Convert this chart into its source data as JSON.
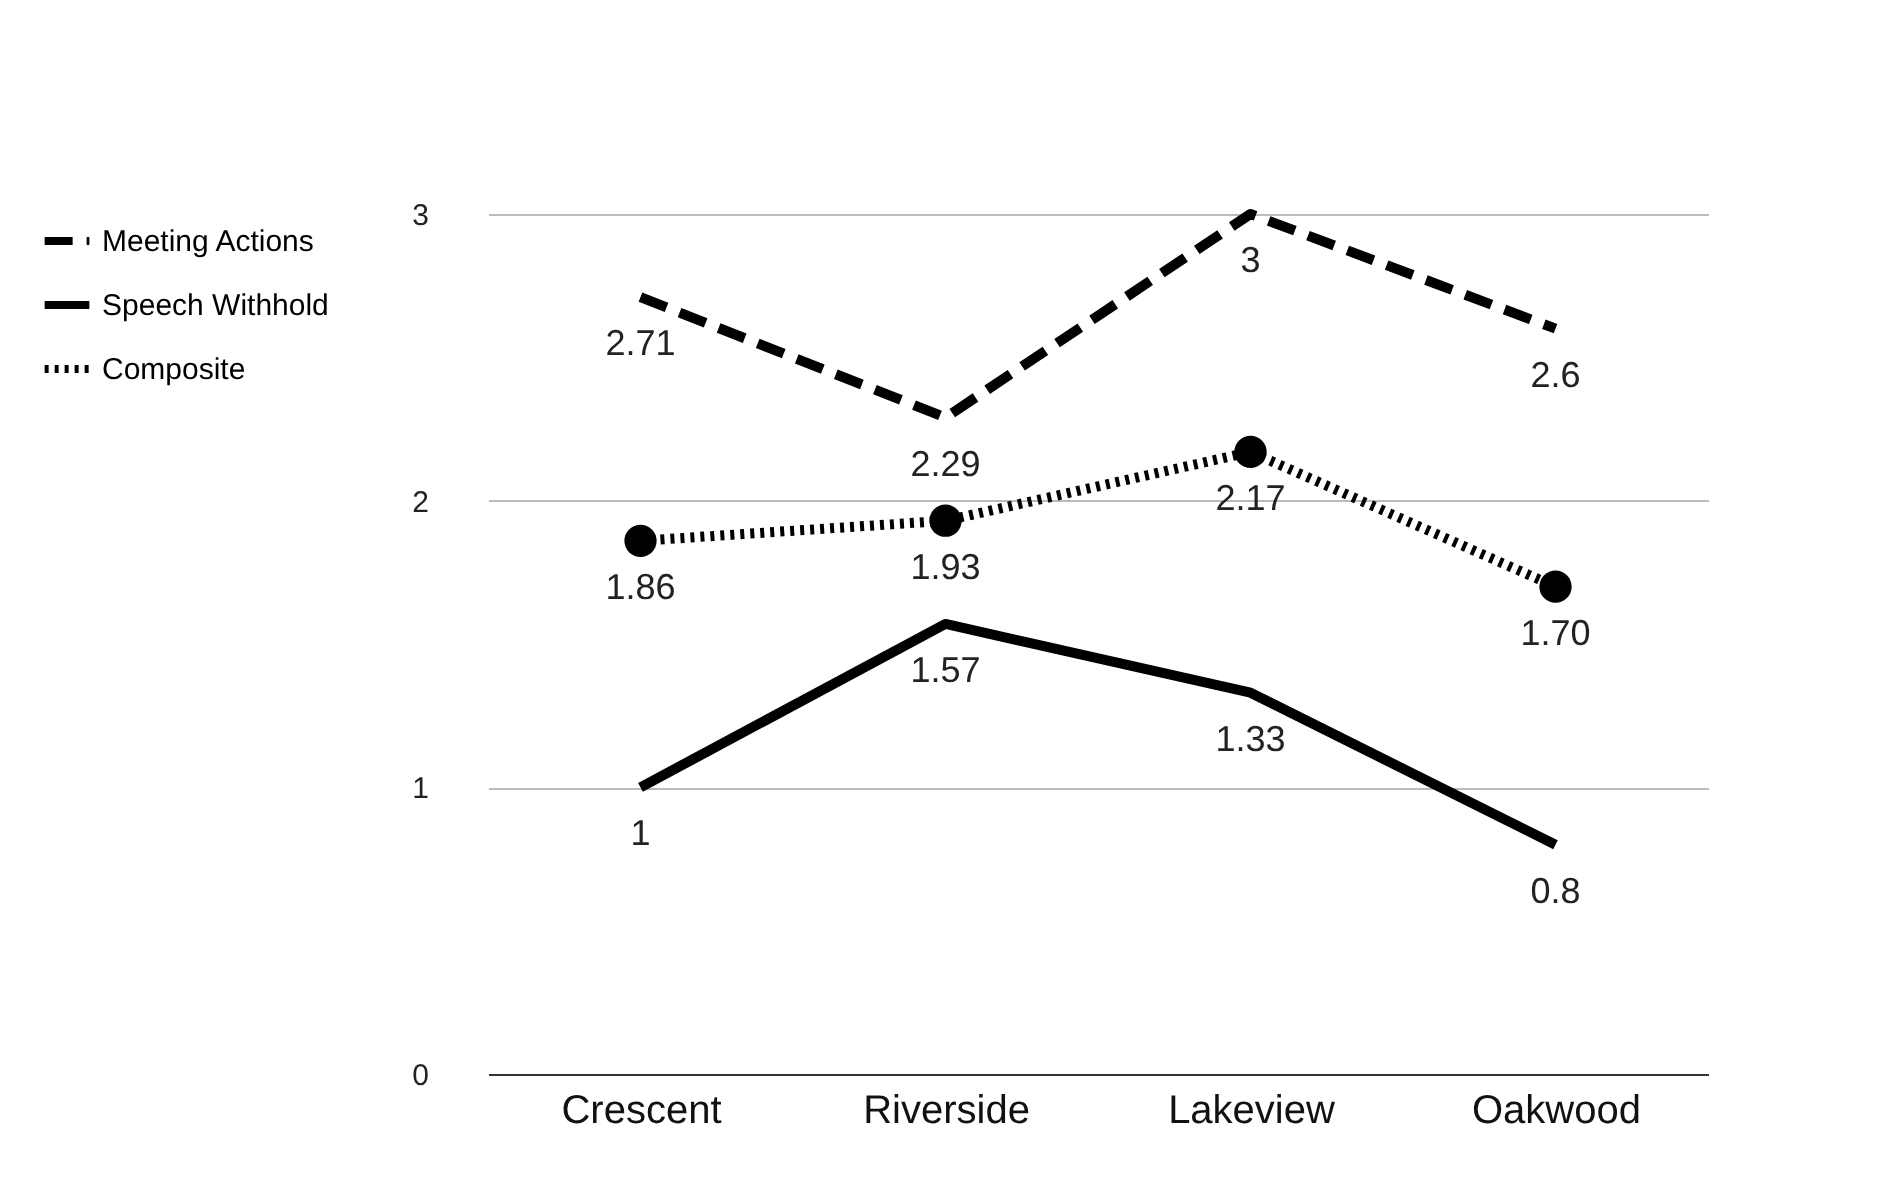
{
  "chart_data": {
    "type": "line",
    "categories": [
      "Crescent",
      "Riverside",
      "Lakeview",
      "Oakwood"
    ],
    "series": [
      {
        "name": "Meeting Actions",
        "color": "#000000",
        "line_style": "dashed",
        "marker": "none",
        "values": [
          2.71,
          2.29,
          3,
          2.6
        ],
        "value_labels": [
          "2.71",
          "2.29",
          "3",
          "2.6"
        ]
      },
      {
        "name": "Speech Withhold",
        "color": "#000000",
        "line_style": "solid",
        "marker": "none",
        "values": [
          1,
          1.57,
          1.33,
          0.8
        ],
        "value_labels": [
          "1",
          "1.57",
          "1.33",
          "0.8"
        ]
      },
      {
        "name": "Composite",
        "color": "#000000",
        "line_style": "dotted",
        "marker": "circle",
        "values": [
          1.86,
          1.93,
          2.17,
          1.7
        ],
        "value_labels": [
          "1.86",
          "1.93",
          "2.17",
          "1.70"
        ]
      }
    ],
    "ylim": [
      0,
      3
    ],
    "yticks": [
      0,
      1,
      2,
      3
    ],
    "grid": "y",
    "legend": "left"
  }
}
